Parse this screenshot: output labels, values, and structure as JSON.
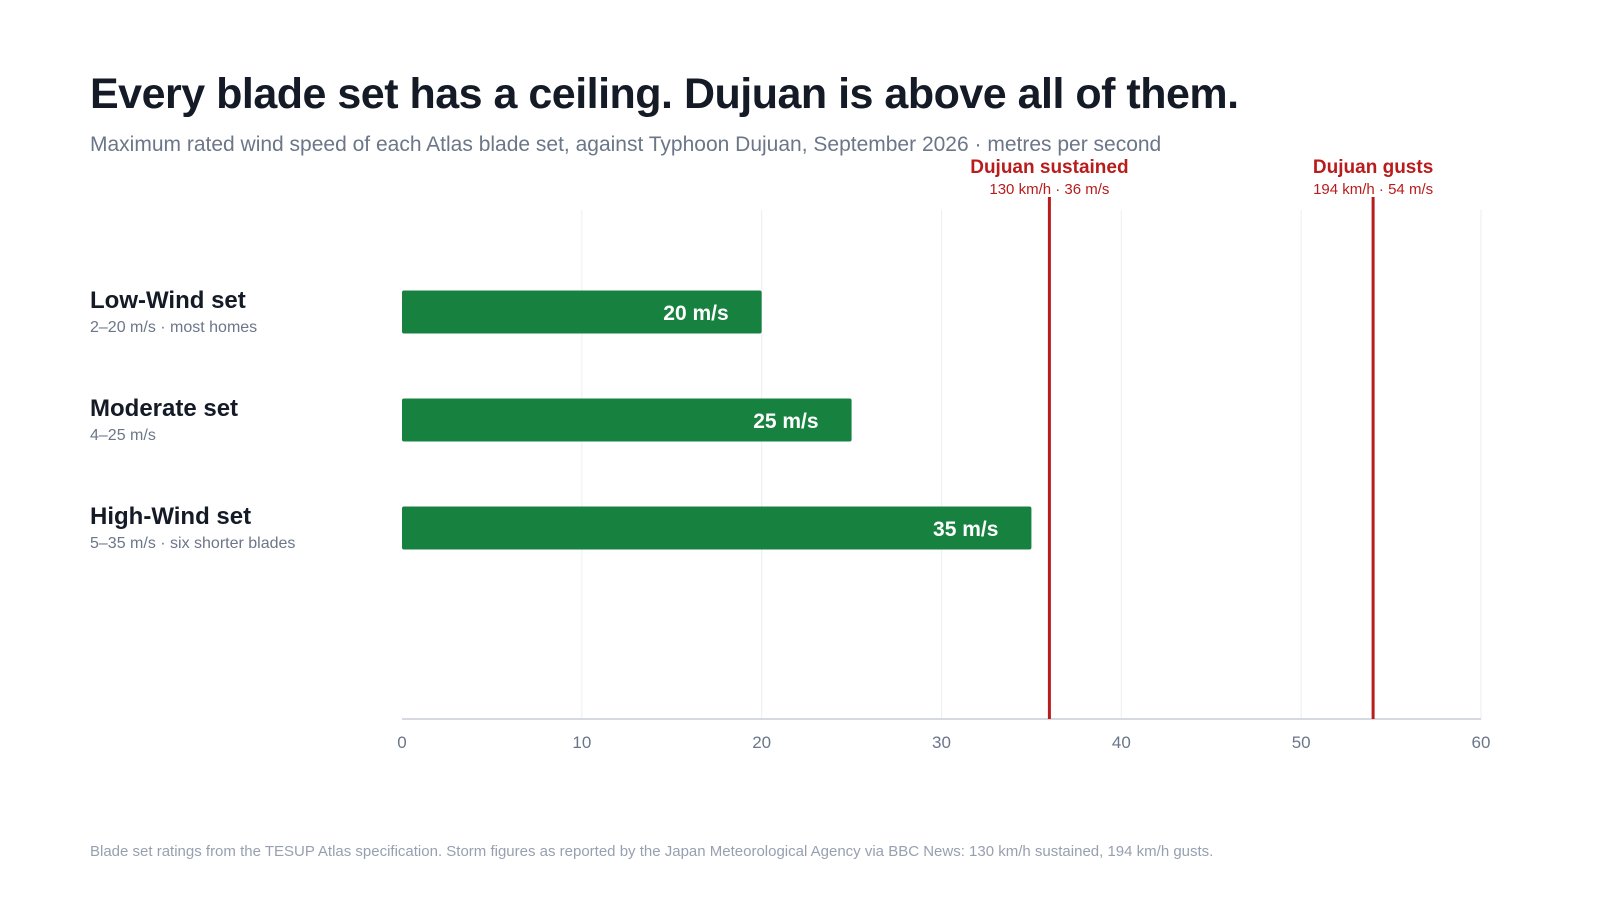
{
  "title": "Every blade set has a ceiling. Dujuan is above all of them.",
  "subtitle": "Maximum rated wind speed of each Atlas blade set, against Typhoon Dujuan, September 2026 · metres per second",
  "footnote": "Blade set ratings from the TESUP Atlas specification. Storm figures as reported by the Japan Meteorological Agency via BBC News: 130 km/h sustained, 194 km/h gusts.",
  "colors": {
    "bar": "#178240",
    "reference": "#b91c1c",
    "grid": "#eceef2",
    "axis": "#c8cdd6"
  },
  "chart_data": {
    "type": "bar",
    "orientation": "horizontal",
    "categories": [
      "Low-Wind set",
      "Moderate set",
      "High-Wind set"
    ],
    "descriptions": [
      "2–20 m/s · most homes",
      "4–25 m/s",
      "5–35 m/s · six shorter blades"
    ],
    "values": [
      20,
      25,
      35
    ],
    "value_labels": [
      "20 m/s",
      "25 m/s",
      "35 m/s"
    ],
    "xlim": [
      0,
      60
    ],
    "xticks": [
      0,
      10,
      20,
      30,
      40,
      50,
      60
    ],
    "grid": true,
    "reference_lines": [
      {
        "name": "Dujuan sustained",
        "detail": "130 km/h · 36 m/s",
        "value": 36
      },
      {
        "name": "Dujuan gusts",
        "detail": "194 km/h · 54 m/s",
        "value": 54
      }
    ]
  }
}
